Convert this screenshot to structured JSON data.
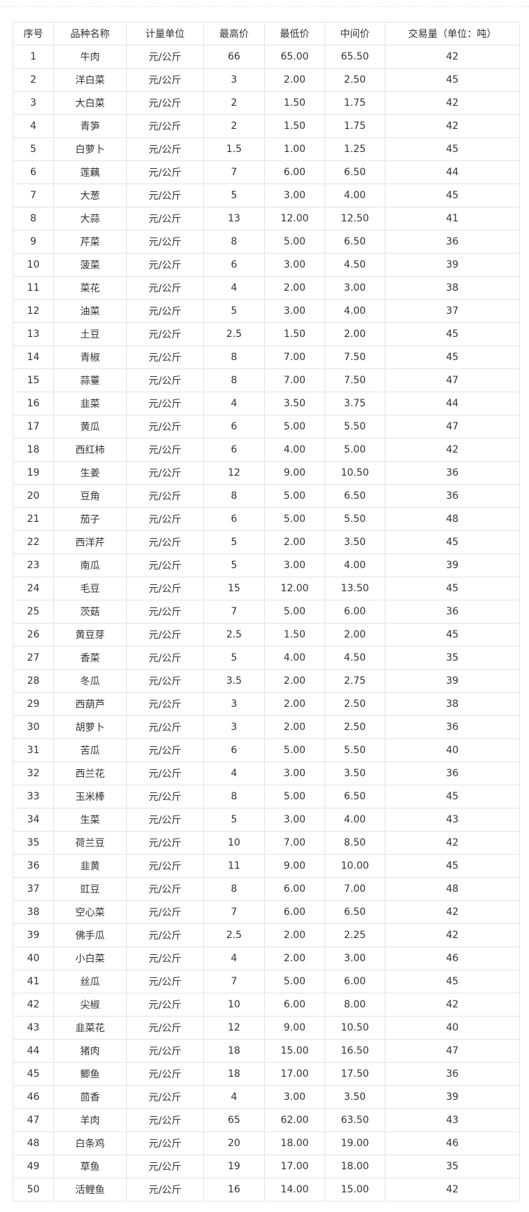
{
  "table": {
    "headers": [
      "序号",
      "品种名称",
      "计量单位",
      "最高价",
      "最低价",
      "中间价",
      "交易量（单位：吨）"
    ],
    "rows": [
      [
        "1",
        "牛肉",
        "元/公斤",
        "66",
        "65.00",
        "65.50",
        "42"
      ],
      [
        "2",
        "洋白菜",
        "元/公斤",
        "3",
        "2.00",
        "2.50",
        "45"
      ],
      [
        "3",
        "大白菜",
        "元/公斤",
        "2",
        "1.50",
        "1.75",
        "42"
      ],
      [
        "4",
        "青笋",
        "元/公斤",
        "2",
        "1.50",
        "1.75",
        "42"
      ],
      [
        "5",
        "白萝卜",
        "元/公斤",
        "1.5",
        "1.00",
        "1.25",
        "45"
      ],
      [
        "6",
        "莲藕",
        "元/公斤",
        "7",
        "6.00",
        "6.50",
        "44"
      ],
      [
        "7",
        "大葱",
        "元/公斤",
        "5",
        "3.00",
        "4.00",
        "45"
      ],
      [
        "8",
        "大蒜",
        "元/公斤",
        "13",
        "12.00",
        "12.50",
        "41"
      ],
      [
        "9",
        "芹菜",
        "元/公斤",
        "8",
        "5.00",
        "6.50",
        "36"
      ],
      [
        "10",
        "菠菜",
        "元/公斤",
        "6",
        "3.00",
        "4.50",
        "39"
      ],
      [
        "11",
        "菜花",
        "元/公斤",
        "4",
        "2.00",
        "3.00",
        "38"
      ],
      [
        "12",
        "油菜",
        "元/公斤",
        "5",
        "3.00",
        "4.00",
        "37"
      ],
      [
        "13",
        "土豆",
        "元/公斤",
        "2.5",
        "1.50",
        "2.00",
        "45"
      ],
      [
        "14",
        "青椒",
        "元/公斤",
        "8",
        "7.00",
        "7.50",
        "45"
      ],
      [
        "15",
        "蒜薹",
        "元/公斤",
        "8",
        "7.00",
        "7.50",
        "47"
      ],
      [
        "16",
        "韭菜",
        "元/公斤",
        "4",
        "3.50",
        "3.75",
        "44"
      ],
      [
        "17",
        "黄瓜",
        "元/公斤",
        "6",
        "5.00",
        "5.50",
        "47"
      ],
      [
        "18",
        "西红柿",
        "元/公斤",
        "6",
        "4.00",
        "5.00",
        "42"
      ],
      [
        "19",
        "生姜",
        "元/公斤",
        "12",
        "9.00",
        "10.50",
        "36"
      ],
      [
        "20",
        "豆角",
        "元/公斤",
        "8",
        "5.00",
        "6.50",
        "36"
      ],
      [
        "21",
        "茄子",
        "元/公斤",
        "6",
        "5.00",
        "5.50",
        "48"
      ],
      [
        "22",
        "西洋芹",
        "元/公斤",
        "5",
        "2.00",
        "3.50",
        "45"
      ],
      [
        "23",
        "南瓜",
        "元/公斤",
        "5",
        "3.00",
        "4.00",
        "39"
      ],
      [
        "24",
        "毛豆",
        "元/公斤",
        "15",
        "12.00",
        "13.50",
        "45"
      ],
      [
        "25",
        "茨菇",
        "元/公斤",
        "7",
        "5.00",
        "6.00",
        "36"
      ],
      [
        "26",
        "黄豆芽",
        "元/公斤",
        "2.5",
        "1.50",
        "2.00",
        "45"
      ],
      [
        "27",
        "香菜",
        "元/公斤",
        "5",
        "4.00",
        "4.50",
        "35"
      ],
      [
        "28",
        "冬瓜",
        "元/公斤",
        "3.5",
        "2.00",
        "2.75",
        "39"
      ],
      [
        "29",
        "西葫芦",
        "元/公斤",
        "3",
        "2.00",
        "2.50",
        "38"
      ],
      [
        "30",
        "胡萝卜",
        "元/公斤",
        "3",
        "2.00",
        "2.50",
        "36"
      ],
      [
        "31",
        "苦瓜",
        "元/公斤",
        "6",
        "5.00",
        "5.50",
        "40"
      ],
      [
        "32",
        "西兰花",
        "元/公斤",
        "4",
        "3.00",
        "3.50",
        "36"
      ],
      [
        "33",
        "玉米棒",
        "元/公斤",
        "8",
        "5.00",
        "6.50",
        "45"
      ],
      [
        "34",
        "生菜",
        "元/公斤",
        "5",
        "3.00",
        "4.00",
        "43"
      ],
      [
        "35",
        "荷兰豆",
        "元/公斤",
        "10",
        "7.00",
        "8.50",
        "42"
      ],
      [
        "36",
        "韭黄",
        "元/公斤",
        "11",
        "9.00",
        "10.00",
        "45"
      ],
      [
        "37",
        "豇豆",
        "元/公斤",
        "8",
        "6.00",
        "7.00",
        "48"
      ],
      [
        "38",
        "空心菜",
        "元/公斤",
        "7",
        "6.00",
        "6.50",
        "42"
      ],
      [
        "39",
        "佛手瓜",
        "元/公斤",
        "2.5",
        "2.00",
        "2.25",
        "42"
      ],
      [
        "40",
        "小白菜",
        "元/公斤",
        "4",
        "2.00",
        "3.00",
        "46"
      ],
      [
        "41",
        "丝瓜",
        "元/公斤",
        "7",
        "5.00",
        "6.00",
        "45"
      ],
      [
        "42",
        "尖椒",
        "元/公斤",
        "10",
        "6.00",
        "8.00",
        "42"
      ],
      [
        "43",
        "韭菜花",
        "元/公斤",
        "12",
        "9.00",
        "10.50",
        "40"
      ],
      [
        "44",
        "猪肉",
        "元/公斤",
        "18",
        "15.00",
        "16.50",
        "47"
      ],
      [
        "45",
        "鲫鱼",
        "元/公斤",
        "18",
        "17.00",
        "17.50",
        "36"
      ],
      [
        "46",
        "茴香",
        "元/公斤",
        "4",
        "3.00",
        "3.50",
        "39"
      ],
      [
        "47",
        "羊肉",
        "元/公斤",
        "65",
        "62.00",
        "63.50",
        "43"
      ],
      [
        "48",
        "白条鸡",
        "元/公斤",
        "20",
        "18.00",
        "19.00",
        "46"
      ],
      [
        "49",
        "草鱼",
        "元/公斤",
        "19",
        "17.00",
        "18.00",
        "35"
      ],
      [
        "50",
        "活鲤鱼",
        "元/公斤",
        "16",
        "14.00",
        "15.00",
        "42"
      ]
    ]
  }
}
